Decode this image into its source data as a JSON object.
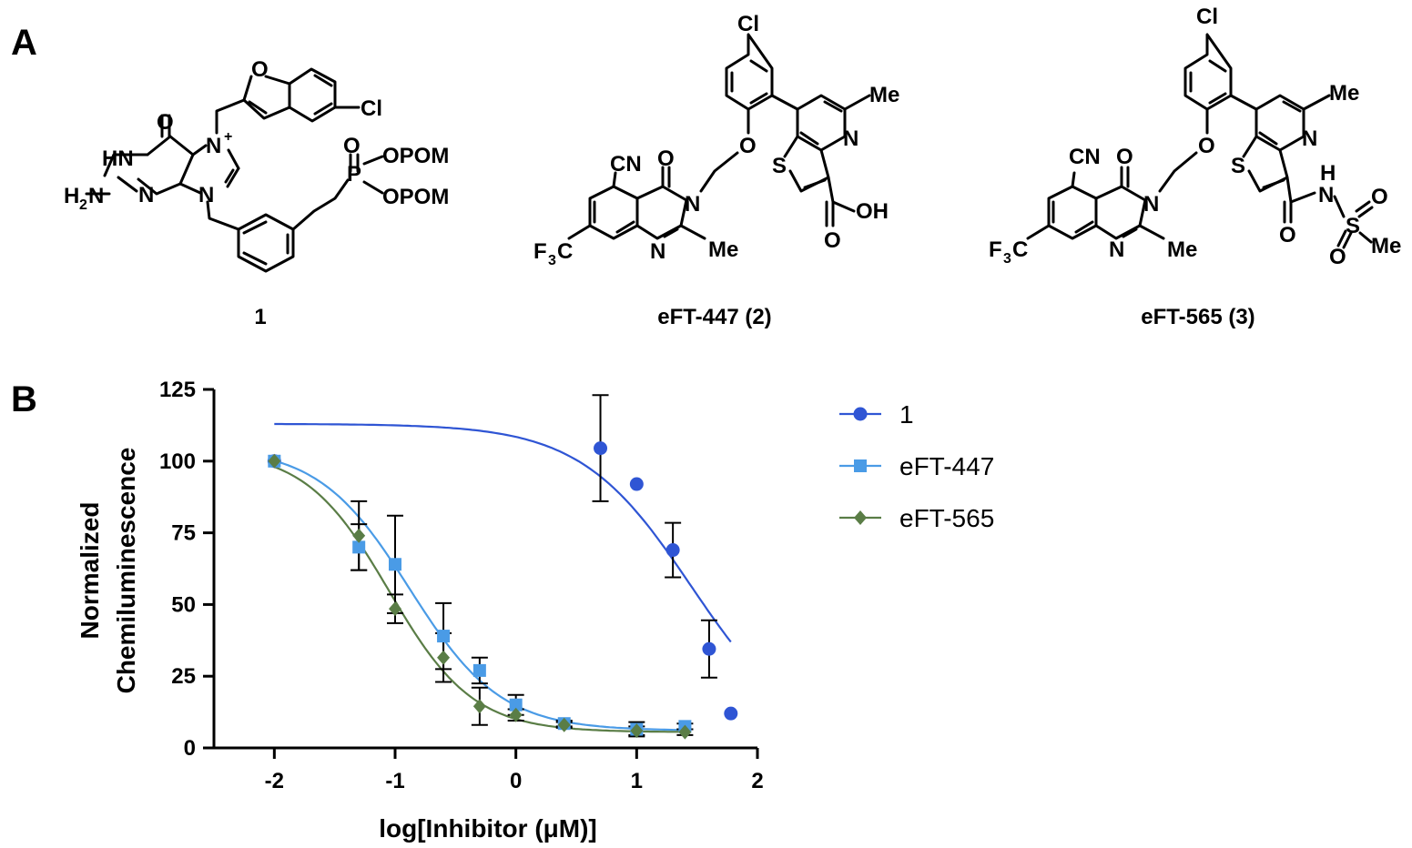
{
  "panels": {
    "a_label": "A",
    "b_label": "B"
  },
  "structures": {
    "compound1": {
      "label": "1",
      "atoms": {
        "o_carbonyl": "O",
        "hn": "HN",
        "h2n": "H",
        "h2n_sub": "2",
        "h2n_n": "N",
        "n_ring1": "N",
        "n_plus": "N",
        "plus": "+",
        "n_bottom": "N",
        "n_ring2": "N",
        "o_furan": "O",
        "cl": "Cl",
        "o_p": "O",
        "p": "P",
        "opom1": "OPOM",
        "opom2": "OPOM"
      }
    },
    "compound2": {
      "label": "eFT-447 (2)",
      "atoms": {
        "cl": "Cl",
        "me_top": "Me",
        "n_pyr": "N",
        "o_ether": "O",
        "s": "S",
        "cn": "CN",
        "o_quin": "O",
        "n_quin1": "N",
        "n_quin2": "N",
        "me_quin": "Me",
        "f3c": "F",
        "f3c_sub": "3",
        "f3c_c": "C",
        "o_acid": "O",
        "oh": "OH"
      }
    },
    "compound3": {
      "label": "eFT-565 (3)",
      "atoms": {
        "cl": "Cl",
        "me_top": "Me",
        "n_pyr": "N",
        "o_ether": "O",
        "s": "S",
        "cn": "CN",
        "o_quin": "O",
        "n_quin1": "N",
        "n_quin2": "N",
        "me_quin": "Me",
        "f3c": "F",
        "f3c_sub": "3",
        "f3c_c": "C",
        "h": "H",
        "nh_n": "N",
        "o_amide": "O",
        "s_sulf": "S",
        "o_s1": "O",
        "o_s2": "O",
        "me_s": "Me"
      }
    }
  },
  "colors": {
    "compound1": "#2f55d4",
    "eFT-447": "#4a9be6",
    "eFT-565": "#5a7d46",
    "error_bar": "#000000"
  },
  "chart_data": {
    "type": "scatter",
    "xlabel": "log[Inhibitor (μM)]",
    "ylabel": [
      "Normalized",
      "Chemiluminescence"
    ],
    "xlim": [
      -2.5,
      2
    ],
    "ylim": [
      0,
      125
    ],
    "xticks": [
      -2,
      -1,
      0,
      1,
      2
    ],
    "yticks": [
      0,
      25,
      50,
      75,
      100,
      125
    ],
    "grid": false,
    "legend_position": "top-right",
    "series": [
      {
        "name": "1",
        "marker": "circle",
        "color": "#2f55d4",
        "x": [
          -2,
          0.7,
          1.0,
          1.3,
          1.6,
          1.78
        ],
        "y": [
          100,
          104.5,
          92,
          69,
          34.5,
          12
        ],
        "err": [
          0,
          18.5,
          0,
          9.5,
          10,
          0
        ],
        "fit": {
          "top": 113,
          "bottom": 0,
          "logIC50": 1.45,
          "hill": -0.95,
          "x_range": [
            -2,
            1.78
          ]
        }
      },
      {
        "name": "eFT-447",
        "marker": "square",
        "color": "#4a9be6",
        "x": [
          -2,
          -1.3,
          -1.0,
          -0.6,
          -0.3,
          0.0,
          0.4,
          1.0,
          1.4
        ],
        "y": [
          100,
          70,
          64,
          39,
          27,
          15,
          8.5,
          6.5,
          7.5
        ],
        "err": [
          0,
          8,
          17,
          11.5,
          4.5,
          3.5,
          1,
          2.5,
          1
        ],
        "fit": {
          "top": 105,
          "bottom": 6,
          "logIC50": -0.88,
          "hill": -1.15,
          "x_range": [
            -2,
            1.4
          ]
        }
      },
      {
        "name": "eFT-565",
        "marker": "diamond",
        "color": "#5a7d46",
        "x": [
          -2,
          -1.3,
          -1.0,
          -0.6,
          -0.3,
          0.0,
          0.4,
          1.0,
          1.4
        ],
        "y": [
          100,
          74,
          48.5,
          31.5,
          14.5,
          11.5,
          8,
          6,
          5.5
        ],
        "err": [
          0,
          12,
          5,
          8.5,
          6.5,
          2,
          1,
          1.5,
          1
        ],
        "fit": {
          "top": 104,
          "bottom": 5.5,
          "logIC50": -1.05,
          "hill": -1.25,
          "x_range": [
            -2,
            1.4
          ]
        }
      }
    ]
  }
}
